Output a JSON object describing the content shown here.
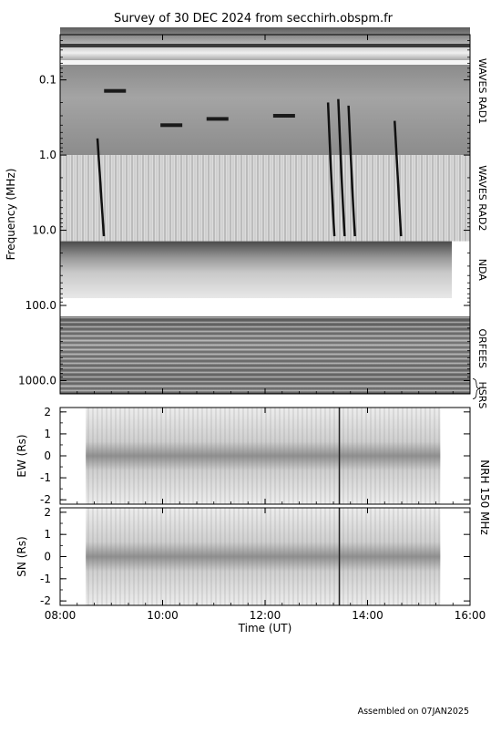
{
  "chart_data": {
    "type": "heatmap",
    "title": "Survey of 30 DEC 2024 from secchirh.obspm.fr",
    "footer": "Assembled on 07JAN2025",
    "x_axis": {
      "label": "Time (UT)",
      "range": [
        "08:00",
        "16:00"
      ],
      "ticks": [
        "08:00",
        "10:00",
        "12:00",
        "14:00",
        "16:00"
      ]
    },
    "panels": [
      {
        "id": "spectrum",
        "y_label": "Frequency (MHz)",
        "y_scale": "log",
        "y_range": [
          0.025,
          1500
        ],
        "y_ticks": [
          "0.1",
          "1.0",
          "10.0",
          "100.0",
          "1000.0"
        ],
        "instruments": [
          {
            "label": "WAVES RAD1",
            "freq_range_mhz": [
              0.02,
              1.0
            ]
          },
          {
            "label": "WAVES RAD2",
            "freq_range_mhz": [
              1.0,
              14.0
            ]
          },
          {
            "label": "NDA",
            "freq_range_mhz": [
              14.0,
              80.0
            ]
          },
          {
            "label": "ORFEES",
            "freq_range_mhz": [
              140.0,
              1000.0
            ]
          },
          {
            "label": "HSRS",
            "freq_range_mhz": [
              1000.0,
              1500.0
            ]
          }
        ]
      },
      {
        "id": "ew",
        "y_label": "EW (Rs)",
        "y_range": [
          -2.2,
          2.2
        ],
        "y_ticks": [
          "2",
          "1",
          "0",
          "-1",
          "-2"
        ]
      },
      {
        "id": "sn",
        "y_label": "SN (Rs)",
        "y_range": [
          -2.2,
          2.2
        ],
        "y_ticks": [
          "2",
          "1",
          "0",
          "-1",
          "-2"
        ]
      }
    ],
    "nrh_label": "NRH 150 MHz"
  }
}
